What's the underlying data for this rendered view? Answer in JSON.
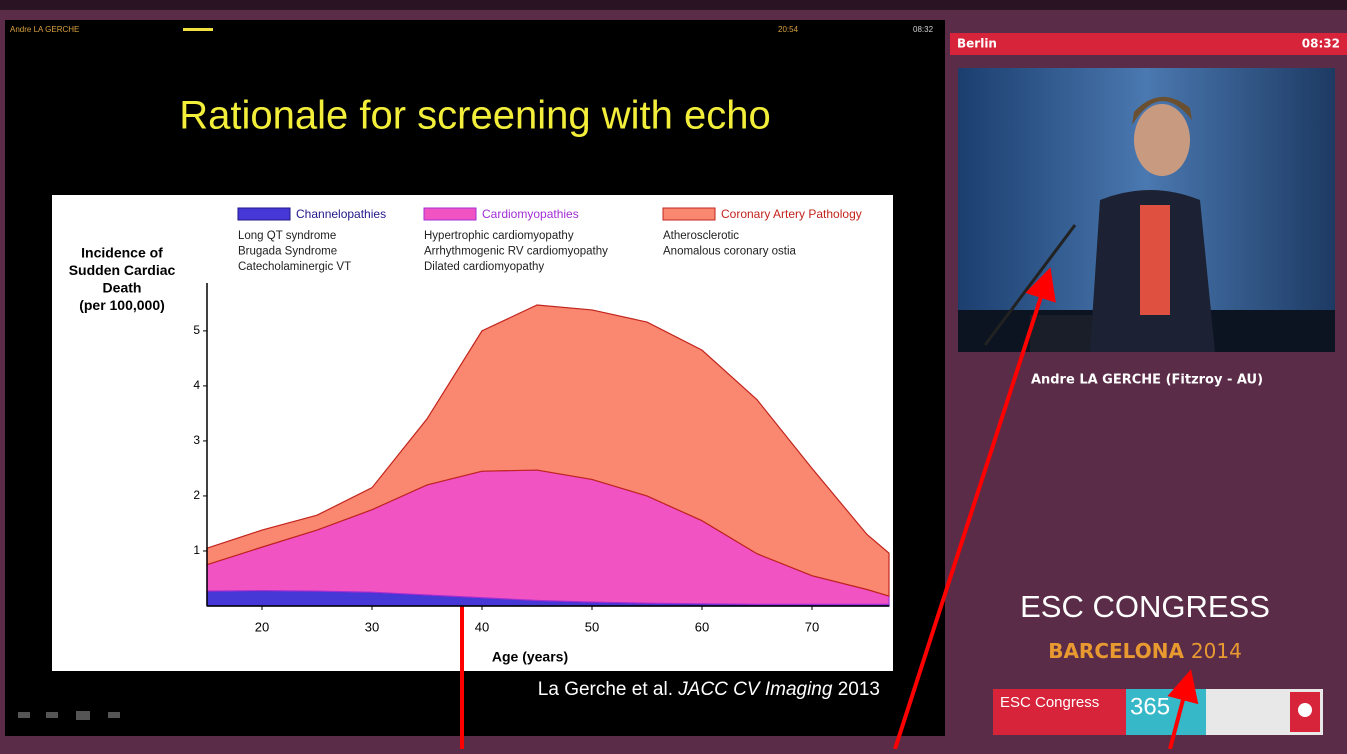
{
  "window": {
    "presenter": "Andre LA GERCHE",
    "elapsed": "20:54",
    "clock": "08:32"
  },
  "slide": {
    "title": "Rationale for screening with echo",
    "citation": {
      "authors": "La Gerche et al.",
      "journal": "JACC CV Imaging",
      "year": "2013"
    }
  },
  "chart_data": {
    "type": "area",
    "stacked": true,
    "y_label": [
      "Incidence of",
      "Sudden Cardiac",
      "Death",
      "(per 100,000)"
    ],
    "x_label": "Age (years)",
    "x": [
      15,
      20,
      25,
      30,
      35,
      40,
      45,
      50,
      55,
      60,
      65,
      70,
      75,
      77
    ],
    "series": [
      {
        "name": "Channelopathies",
        "color": "#4638d6",
        "line_color": "#22168a",
        "items": [
          "Long QT syndrome",
          "Brugada Syndrome",
          "Catecholaminergic VT"
        ],
        "values": [
          0.27,
          0.28,
          0.27,
          0.25,
          0.2,
          0.15,
          0.1,
          0.07,
          0.05,
          0.04,
          0.03,
          0.03,
          0.03,
          0.03
        ]
      },
      {
        "name": "Cardiomyopathies",
        "color": "#f153c2",
        "line_color": "#a22fd6",
        "items": [
          "Hypertrophic cardiomyopathy",
          "Arrhythmogenic RV cardiomyopathy",
          "Dilated cardiomyopathy"
        ],
        "values": [
          0.48,
          0.79,
          1.11,
          1.5,
          2.0,
          2.3,
          2.37,
          2.23,
          1.95,
          1.51,
          0.92,
          0.52,
          0.27,
          0.15
        ]
      },
      {
        "name": "Coronary Artery Pathology",
        "color": "#fa8770",
        "line_color": "#c2241c",
        "items": [
          "Atherosclerotic",
          "Anomalous coronary ostia"
        ],
        "values": [
          0.3,
          0.31,
          0.27,
          0.4,
          1.2,
          2.55,
          3.0,
          3.08,
          3.16,
          3.1,
          2.8,
          1.95,
          1.0,
          0.78
        ]
      }
    ],
    "xlim": [
      15,
      77
    ],
    "ylim": [
      0,
      5.87
    ],
    "xticks": [
      20,
      30,
      40,
      50,
      60,
      70
    ],
    "yticks": [
      1,
      2,
      3,
      4,
      5
    ]
  },
  "side_panel": {
    "location": "Berlin",
    "clock": "08:32",
    "speaker": "Andre LA GERCHE (Fitzroy - AU)",
    "logo": {
      "name": "ESC CONGRESS",
      "city": "BARCELONA",
      "year": "2014"
    },
    "banner": {
      "brand": "ESC Congress",
      "number": "365"
    }
  }
}
